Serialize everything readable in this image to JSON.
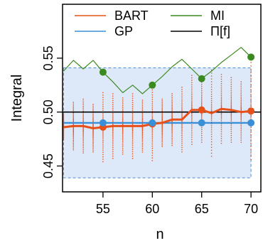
{
  "chart_data": {
    "type": "line",
    "xlabel": "n",
    "ylabel": "Integral",
    "xlim": [
      50.9,
      71.0
    ],
    "ylim": [
      0.426,
      0.6
    ],
    "xticks": [
      55,
      60,
      65,
      70
    ],
    "yticks": [
      0.45,
      0.5,
      0.55
    ],
    "ytick_labels": [
      "0.45",
      "0.50",
      "0.55"
    ],
    "grid": false,
    "legend_position": "top",
    "true_value": {
      "name": "Π[f]",
      "y": 0.5,
      "color": "#000000"
    },
    "gp_band": {
      "lower": 0.439,
      "upper": 0.541,
      "x_start": 51,
      "x_end": 70,
      "color": "#4a90d9",
      "fill": "#dde9f8"
    },
    "series": [
      {
        "name": "BART",
        "color": "#e8501a",
        "x": [
          51,
          52,
          53,
          54,
          55,
          56,
          57,
          58,
          59,
          60,
          61,
          62,
          63,
          64,
          65,
          66,
          67,
          68,
          69,
          70
        ],
        "values": [
          0.486,
          0.487,
          0.487,
          0.485,
          0.486,
          0.487,
          0.487,
          0.487,
          0.487,
          0.489,
          0.49,
          0.493,
          0.493,
          0.502,
          0.502,
          0.499,
          0.503,
          0.502,
          0.5,
          0.501
        ],
        "spread": [
          0.012,
          0.022,
          0.025,
          0.022,
          0.032,
          0.03,
          0.026,
          0.03,
          0.024,
          0.034,
          0.022,
          0.024,
          0.03,
          0.032,
          0.03,
          0.04,
          0.032,
          0.03,
          0.028,
          0.045
        ],
        "markers_at": [
          55,
          60,
          65,
          70
        ]
      },
      {
        "name": "GP",
        "color": "#3a8fd6",
        "x": [
          51,
          52,
          53,
          54,
          55,
          56,
          57,
          58,
          59,
          60,
          61,
          62,
          63,
          64,
          65,
          66,
          67,
          68,
          69,
          70
        ],
        "values": [
          0.49,
          0.49,
          0.49,
          0.49,
          0.49,
          0.49,
          0.49,
          0.49,
          0.49,
          0.49,
          0.49,
          0.49,
          0.49,
          0.49,
          0.49,
          0.49,
          0.49,
          0.49,
          0.49,
          0.49
        ],
        "markers_at": [
          55,
          60,
          65,
          70
        ]
      },
      {
        "name": "MI",
        "color": "#3b8a1f",
        "x": [
          51,
          52,
          53,
          54,
          55,
          56,
          57,
          58,
          59,
          60,
          61,
          62,
          63,
          64,
          65,
          66,
          67,
          68,
          69,
          70
        ],
        "values": [
          0.538,
          0.548,
          0.54,
          0.548,
          0.537,
          0.528,
          0.518,
          0.525,
          0.517,
          0.525,
          0.533,
          0.542,
          0.549,
          0.54,
          0.531,
          0.538,
          0.546,
          0.553,
          0.56,
          0.551
        ],
        "markers_at": [
          55,
          60,
          65,
          70
        ]
      }
    ],
    "legend": [
      {
        "name": "BART",
        "color": "#e8501a"
      },
      {
        "name": "MI",
        "color": "#3b8a1f"
      },
      {
        "name": "GP",
        "color": "#3a8fd6"
      },
      {
        "name": "Π[f]",
        "color": "#000000"
      }
    ]
  }
}
